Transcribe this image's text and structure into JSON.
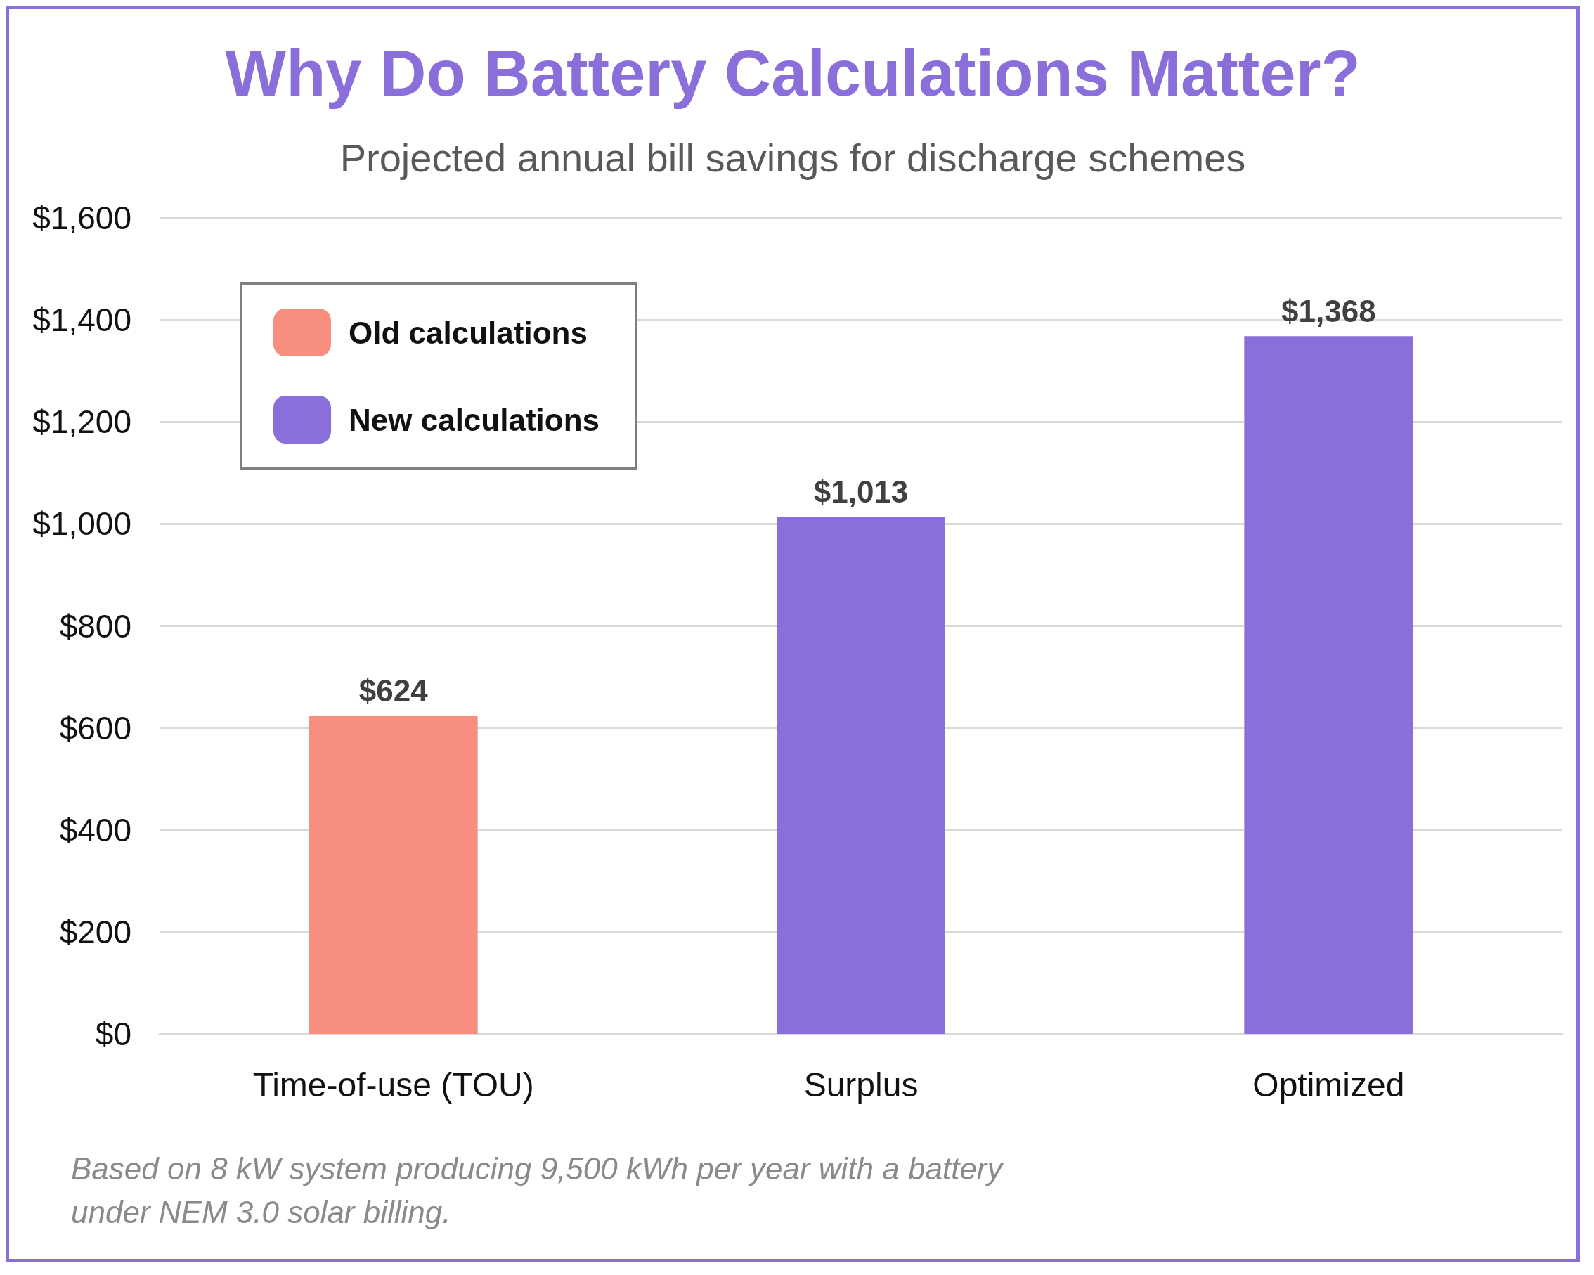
{
  "chart_data": {
    "type": "bar",
    "title": "Why Do Battery Calculations Matter?",
    "subtitle": "Projected annual bill savings for discharge schemes",
    "categories": [
      "Time-of-use (TOU)",
      "Surplus",
      "Optimized"
    ],
    "series": [
      {
        "name": "Old calculations",
        "color": "#f88f7e",
        "values": [
          624,
          null,
          null
        ],
        "value_labels": [
          "$624",
          null,
          null
        ]
      },
      {
        "name": "New calculations",
        "color": "#8a6fdb",
        "values": [
          null,
          1013,
          1368
        ],
        "value_labels": [
          null,
          "$1,013",
          "$1,368"
        ]
      }
    ],
    "ylim": [
      0,
      1600
    ],
    "yticks": [
      {
        "value": 0,
        "label": "$0"
      },
      {
        "value": 200,
        "label": "$200"
      },
      {
        "value": 400,
        "label": "$400"
      },
      {
        "value": 600,
        "label": "$600"
      },
      {
        "value": 800,
        "label": "$800"
      },
      {
        "value": 1000,
        "label": "$1,000"
      },
      {
        "value": 1200,
        "label": "$1,200"
      },
      {
        "value": 1400,
        "label": "$1,400"
      },
      {
        "value": 1600,
        "label": "$1,600"
      }
    ],
    "grid": "y",
    "legend": "top left",
    "annotations": [
      "Based on 8 kW system producing 9,500 kWh per year with a battery under NEM 3.0 solar billing."
    ]
  }
}
